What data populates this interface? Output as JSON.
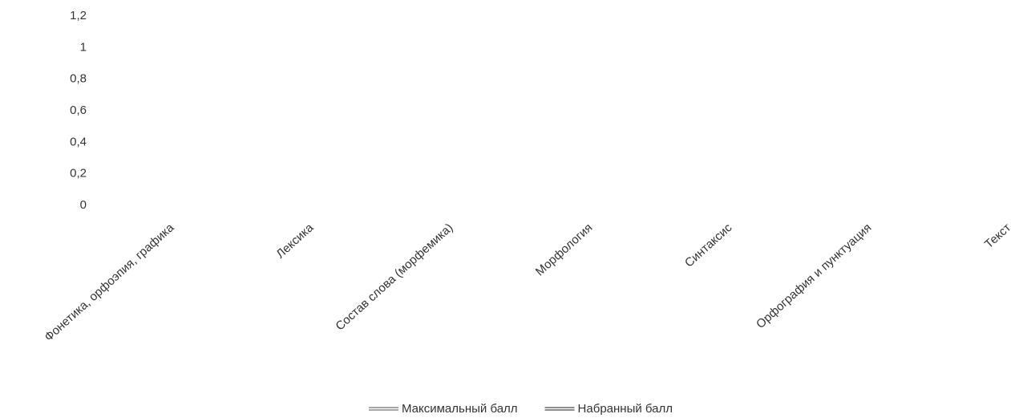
{
  "chart_data": {
    "type": "line",
    "categories": [
      "Фонетика, орфоэпия, графика",
      "Лексика",
      "Состав слова (морфемика)",
      "Морфология",
      "Синтаксис",
      "Орфография и пунктуация",
      "Текст"
    ],
    "series": [
      {
        "name": "Максимальный балл",
        "color": "#8a8a8a",
        "values": [
          null,
          null,
          null,
          null,
          null,
          null,
          null
        ]
      },
      {
        "name": "Набранный балл",
        "color": "#6a6a6a",
        "values": [
          null,
          null,
          null,
          null,
          null,
          null,
          null
        ]
      }
    ],
    "ylim": [
      0,
      1.2
    ],
    "yticks": [
      0,
      {
        "value": 0.2,
        "label": "0,2"
      },
      {
        "value": 0.4,
        "label": "0,4"
      },
      {
        "value": 0.6,
        "label": "0,6"
      },
      {
        "value": 0.8,
        "label": "0,8"
      },
      1,
      {
        "value": 1.2,
        "label": "1,2"
      }
    ],
    "grid": false,
    "legend": "bottom"
  }
}
